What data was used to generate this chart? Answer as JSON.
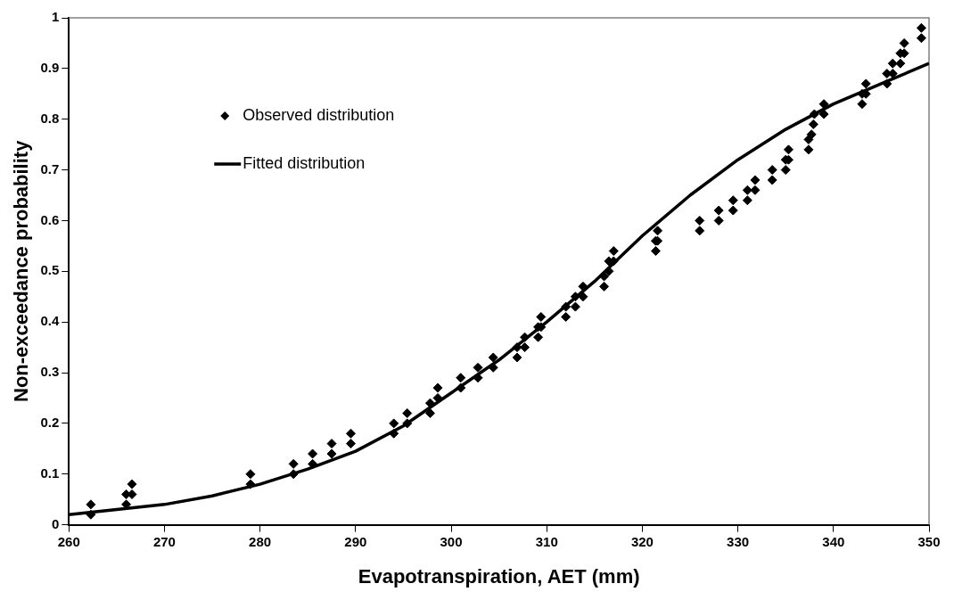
{
  "chart_data": {
    "type": "scatter",
    "xlabel": "Evapotranspiration, AET (mm)",
    "ylabel": "Non-exceedance probability",
    "xlim": [
      260,
      350
    ],
    "xticks": [
      260,
      270,
      280,
      290,
      300,
      310,
      320,
      330,
      340,
      350
    ],
    "ylim": [
      0,
      1
    ],
    "yticks": [
      0,
      {
        "value": 0.1,
        "label": "0.1"
      },
      {
        "value": 0.2,
        "label": "0.2"
      },
      {
        "value": 0.3,
        "label": "0.3"
      },
      {
        "value": 0.4,
        "label": "0.4"
      },
      {
        "value": 0.5,
        "label": "0.5"
      },
      {
        "value": 0.6,
        "label": "0.6"
      },
      {
        "value": 0.7,
        "label": "0.7"
      },
      {
        "value": 0.8,
        "label": "0.8"
      },
      {
        "value": 0.9,
        "label": "0.9"
      },
      1
    ],
    "grid": false,
    "legend": "top left",
    "series": [
      {
        "name": "Observed distribution",
        "type": "scatter",
        "marker": "diamond",
        "color": "#000000",
        "x": [
          262.3,
          262.3,
          266,
          266,
          266.6,
          266.6,
          279,
          279,
          283.5,
          283.5,
          285.5,
          285.5,
          287.5,
          287.5,
          289.5,
          289.5,
          294,
          294,
          295.4,
          295.4,
          297.8,
          297.8,
          298.6,
          298.6,
          301,
          301,
          302.8,
          302.8,
          304.4,
          304.4,
          306.9,
          306.9,
          307.7,
          307.7,
          309.1,
          309.1,
          309.4,
          309.4,
          312,
          312,
          313,
          313,
          313.8,
          313.8,
          316,
          316,
          316.5,
          316.5,
          317,
          317,
          321.4,
          321.4,
          321.6,
          321.6,
          326,
          326,
          328,
          328,
          329.5,
          329.5,
          331,
          331,
          331.8,
          331.8,
          333.6,
          333.6,
          335,
          335,
          335.3,
          335.3,
          337.4,
          337.4,
          337.7,
          337.9,
          338,
          339,
          339,
          343,
          343,
          343.4,
          343.4,
          345.6,
          345.6,
          346.2,
          346.2,
          347,
          347,
          347.4,
          347.4,
          349.2,
          349.2
        ],
        "values": [
          0.02,
          0.04,
          0.04,
          0.06,
          0.06,
          0.08,
          0.08,
          0.1,
          0.1,
          0.12,
          0.12,
          0.14,
          0.14,
          0.16,
          0.16,
          0.18,
          0.18,
          0.2,
          0.2,
          0.22,
          0.22,
          0.24,
          0.25,
          0.27,
          0.27,
          0.29,
          0.29,
          0.31,
          0.31,
          0.33,
          0.33,
          0.35,
          0.35,
          0.37,
          0.37,
          0.39,
          0.39,
          0.41,
          0.41,
          0.43,
          0.43,
          0.45,
          0.45,
          0.47,
          0.47,
          0.49,
          0.5,
          0.52,
          0.52,
          0.54,
          0.54,
          0.56,
          0.56,
          0.58,
          0.58,
          0.6,
          0.6,
          0.62,
          0.62,
          0.64,
          0.64,
          0.66,
          0.66,
          0.68,
          0.68,
          0.7,
          0.7,
          0.72,
          0.72,
          0.74,
          0.74,
          0.76,
          0.77,
          0.79,
          0.81,
          0.81,
          0.83,
          0.83,
          0.85,
          0.85,
          0.87,
          0.87,
          0.89,
          0.89,
          0.91,
          0.91,
          0.93,
          0.93,
          0.95,
          0.96,
          0.98
        ]
      },
      {
        "name": "Fitted distribution",
        "type": "line",
        "marker": "none",
        "line_style": "solid",
        "color": "#000000",
        "x": [
          260,
          265,
          270,
          275,
          280,
          285,
          290,
          295,
          300,
          305,
          310,
          315,
          320,
          325,
          330,
          335,
          340,
          345,
          350
        ],
        "values": [
          0.02,
          0.03,
          0.04,
          0.057,
          0.08,
          0.11,
          0.145,
          0.195,
          0.26,
          0.325,
          0.4,
          0.48,
          0.57,
          0.65,
          0.72,
          0.78,
          0.83,
          0.87,
          0.91
        ]
      }
    ]
  }
}
